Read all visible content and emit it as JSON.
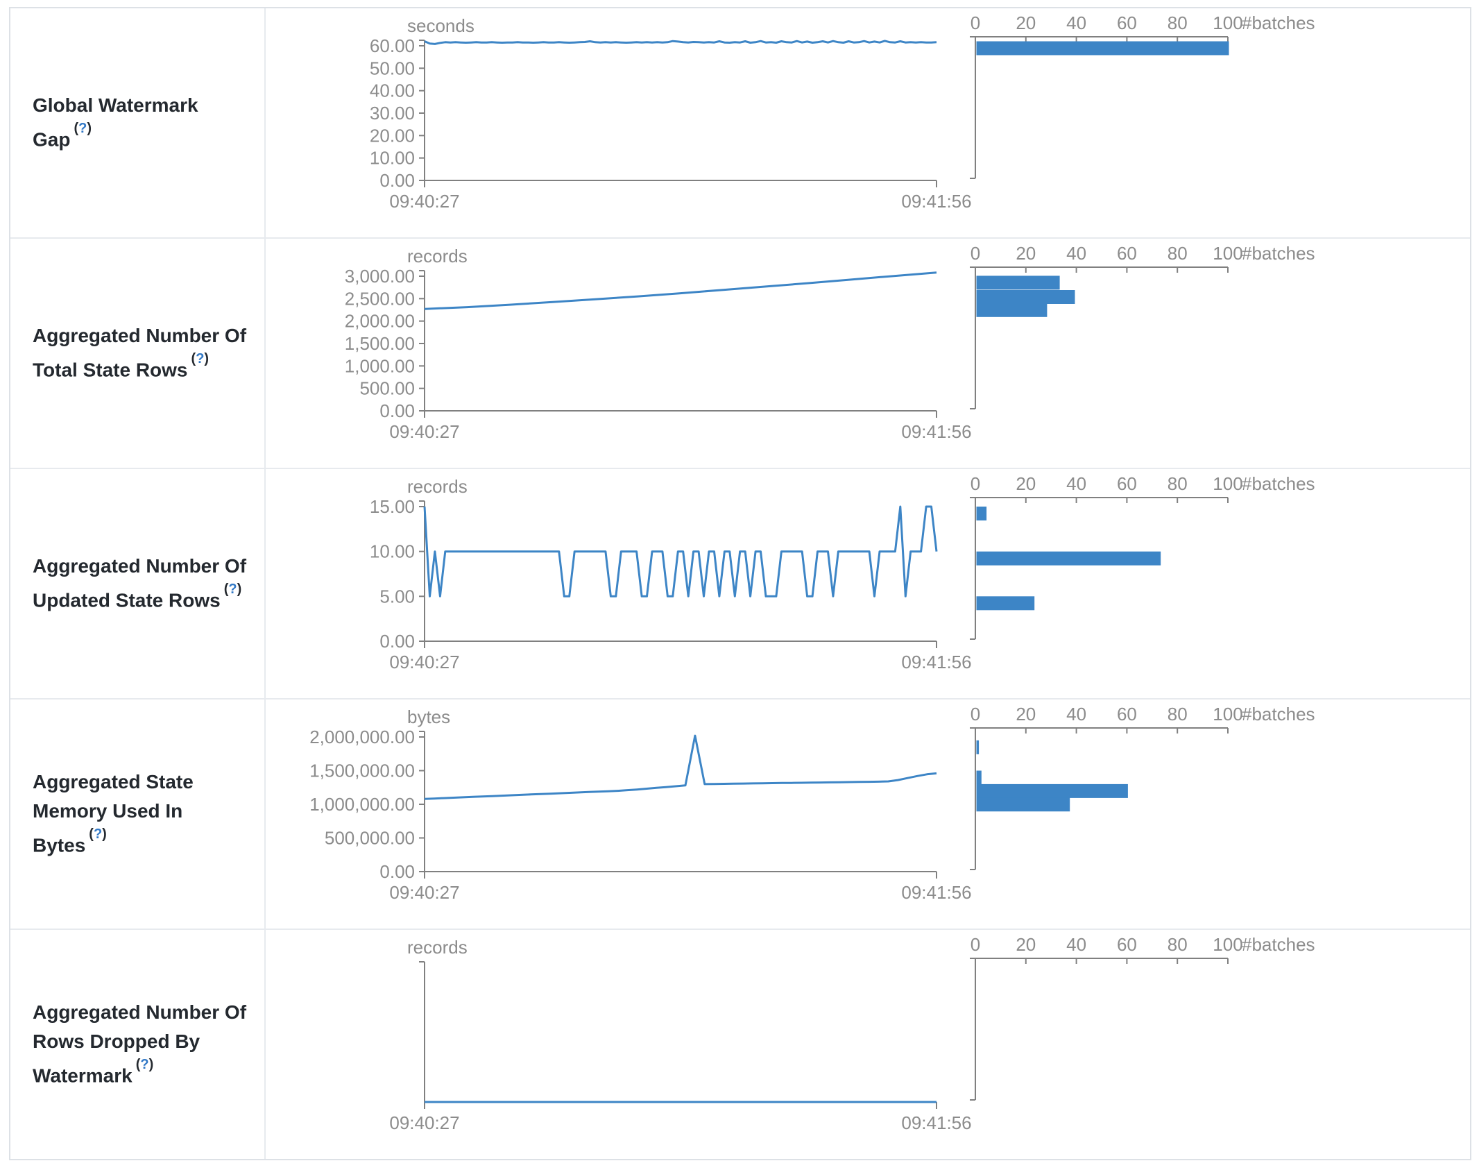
{
  "axes": {
    "time_start": "09:40:27",
    "time_end": "09:41:56",
    "batches_label": "#batches",
    "batches_ticks": [
      0,
      20,
      40,
      60,
      80,
      100
    ]
  },
  "help_marker": {
    "open": "(",
    "q": "?",
    "close": ")"
  },
  "colors": {
    "accent_blue": "#3d85c6",
    "axis_gray": "#808080",
    "tick_label_gray": "#8c8c8c",
    "label_dark": "#24292f",
    "border_gray": "#dde1e6"
  },
  "chart_data": [
    {
      "name": "Global Watermark Gap",
      "type": "line+histogram",
      "unit": "seconds",
      "x_range": [
        "09:40:27",
        "09:41:56"
      ],
      "ymax": 60,
      "y_ticks": [
        {
          "v": 60,
          "label": "60.00"
        },
        {
          "v": 50,
          "label": "50.00"
        },
        {
          "v": 40,
          "label": "40.00"
        },
        {
          "v": 30,
          "label": "30.00"
        },
        {
          "v": 20,
          "label": "20.00"
        },
        {
          "v": 10,
          "label": "10.00"
        },
        {
          "v": 0,
          "label": "0.00"
        }
      ],
      "series": [
        62.0,
        61.0,
        60.8,
        61.3,
        61.6,
        61.5,
        61.6,
        61.5,
        61.4,
        61.5,
        61.6,
        61.5,
        61.5,
        61.6,
        61.5,
        61.4,
        61.5,
        61.5,
        61.6,
        61.5,
        61.5,
        61.4,
        61.5,
        61.6,
        61.5,
        61.5,
        61.6,
        61.5,
        61.4,
        61.5,
        61.6,
        61.7,
        62.0,
        61.6,
        61.5,
        61.6,
        61.5,
        61.6,
        61.5,
        61.4,
        61.5,
        61.6,
        61.5,
        61.6,
        61.5,
        61.6,
        61.5,
        61.6,
        62.1,
        61.9,
        61.6,
        61.5,
        61.7,
        61.6,
        61.5,
        61.6,
        61.5,
        62.0,
        61.5,
        61.4,
        61.6,
        61.5,
        62.0,
        61.4,
        61.6,
        62.1,
        61.5,
        61.6,
        61.4,
        62.0,
        61.6,
        61.5,
        62.1,
        61.5,
        61.9,
        61.4,
        61.6,
        62.0,
        61.5,
        62.1,
        61.6,
        61.4,
        62.0,
        61.5,
        61.6,
        62.1,
        61.5,
        61.9,
        61.5,
        62.2,
        61.6,
        61.5,
        62.0,
        61.5,
        61.6,
        61.5,
        61.6,
        61.5,
        61.5,
        61.6
      ],
      "histogram_bins": [
        {
          "value": 62,
          "count": 100
        }
      ]
    },
    {
      "name": "Aggregated Number Of Total State Rows",
      "type": "line+histogram",
      "unit": "records",
      "x_range": [
        "09:40:27",
        "09:41:56"
      ],
      "ymax": 3000,
      "y_ticks": [
        {
          "v": 3000,
          "label": "3,000.00"
        },
        {
          "v": 2500,
          "label": "2,500.00"
        },
        {
          "v": 2000,
          "label": "2,000.00"
        },
        {
          "v": 1500,
          "label": "1,500.00"
        },
        {
          "v": 1000,
          "label": "1,000.00"
        },
        {
          "v": 500,
          "label": "500.00"
        },
        {
          "v": 0,
          "label": "0.00"
        }
      ],
      "series": [
        2270,
        2310,
        2365,
        2425,
        2485,
        2550,
        2620,
        2695,
        2770,
        2845,
        2925,
        3005,
        3080
      ],
      "histogram_bins": [
        {
          "value": 3010,
          "count": 33
        },
        {
          "value": 2690,
          "count": 39
        },
        {
          "value": 2400,
          "count": 28
        }
      ]
    },
    {
      "name": "Aggregated Number Of Updated State Rows",
      "type": "line+histogram",
      "unit": "records",
      "x_range": [
        "09:40:27",
        "09:41:56"
      ],
      "ymax": 15,
      "y_ticks": [
        {
          "v": 15,
          "label": "15.00"
        },
        {
          "v": 10,
          "label": "10.00"
        },
        {
          "v": 5,
          "label": "5.00"
        },
        {
          "v": 0,
          "label": "0.00"
        }
      ],
      "series": [
        15,
        5,
        10,
        5,
        10,
        10,
        10,
        10,
        10,
        10,
        10,
        10,
        10,
        10,
        10,
        10,
        10,
        10,
        10,
        10,
        10,
        10,
        10,
        10,
        10,
        10,
        10,
        5,
        5,
        10,
        10,
        10,
        10,
        10,
        10,
        10,
        5,
        5,
        10,
        10,
        10,
        10,
        5,
        5,
        10,
        10,
        10,
        5,
        5,
        10,
        10,
        5,
        10,
        10,
        5,
        10,
        10,
        5,
        10,
        10,
        5,
        10,
        10,
        5,
        10,
        10,
        5,
        5,
        5,
        10,
        10,
        10,
        10,
        10,
        5,
        5,
        10,
        10,
        10,
        5,
        10,
        10,
        10,
        10,
        10,
        10,
        10,
        5,
        10,
        10,
        10,
        10,
        15,
        5,
        10,
        10,
        10,
        15,
        15,
        10
      ],
      "histogram_bins": [
        {
          "value": 15,
          "count": 4
        },
        {
          "value": 10,
          "count": 73
        },
        {
          "value": 5,
          "count": 23
        }
      ]
    },
    {
      "name": "Aggregated State Memory Used In Bytes",
      "type": "line+histogram",
      "unit": "bytes",
      "x_range": [
        "09:40:27",
        "09:41:56"
      ],
      "ymax": 2000000,
      "y_ticks": [
        {
          "v": 2000000,
          "label": "2,000,000.00"
        },
        {
          "v": 1500000,
          "label": "1,500,000.00"
        },
        {
          "v": 1000000,
          "label": "1,000,000.00"
        },
        {
          "v": 500000,
          "label": "500,000.00"
        },
        {
          "v": 0,
          "label": "0.00"
        }
      ],
      "series": [
        1080000,
        1086000,
        1092000,
        1098000,
        1104000,
        1110000,
        1116000,
        1122000,
        1128000,
        1134000,
        1140000,
        1146000,
        1152000,
        1158000,
        1164000,
        1170000,
        1176000,
        1182000,
        1188000,
        1194000,
        1200000,
        1210000,
        1220000,
        1232000,
        1244000,
        1256000,
        1268000,
        1280000,
        2020000,
        1300000,
        1302000,
        1304000,
        1306000,
        1308000,
        1310000,
        1312000,
        1314000,
        1316000,
        1318000,
        1320000,
        1322000,
        1324000,
        1326000,
        1328000,
        1330000,
        1332000,
        1334000,
        1336000,
        1340000,
        1360000,
        1390000,
        1420000,
        1445000,
        1460000
      ],
      "histogram_bins": [
        {
          "value": 1950000,
          "count": 1
        },
        {
          "value": 1500000,
          "count": 2
        },
        {
          "value": 1300000,
          "count": 60
        },
        {
          "value": 1100000,
          "count": 37
        }
      ]
    },
    {
      "name": "Aggregated Number Of Rows Dropped By Watermark",
      "type": "line+histogram",
      "unit": "records",
      "x_range": [
        "09:40:27",
        "09:41:56"
      ],
      "ymax": 1,
      "y_ticks": [],
      "series": [
        0,
        0
      ],
      "histogram_bins": []
    }
  ]
}
